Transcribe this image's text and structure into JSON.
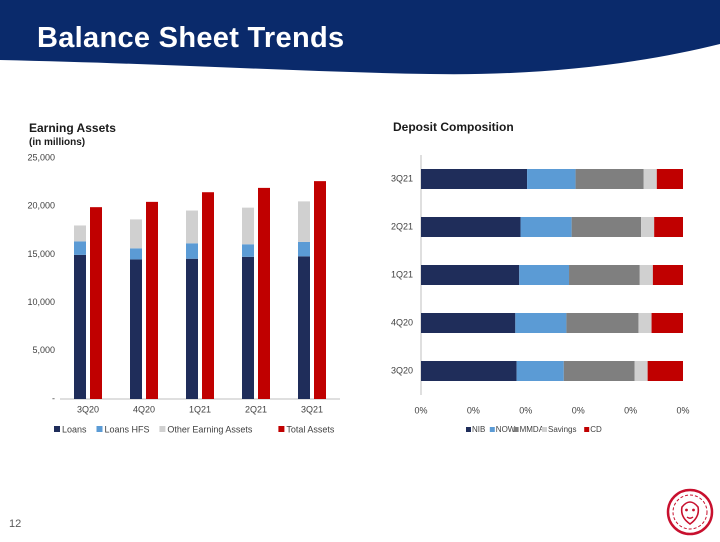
{
  "page": {
    "title": "Balance Sheet Trends",
    "page_number": "12",
    "colors": {
      "header_navy": "#0a2a6b",
      "accent_red": "#c00000"
    },
    "logo_icon": "lion-head-icon"
  },
  "chart_data": [
    {
      "type": "bar",
      "title": "Earning Assets",
      "subtitle": "(in millions)",
      "categories": [
        "3Q20",
        "4Q20",
        "1Q21",
        "2Q21",
        "3Q21"
      ],
      "stacked_series": [
        {
          "name": "Loans",
          "color": "#1f2d5a",
          "values": [
            14950,
            14480,
            14550,
            14750,
            14800
          ]
        },
        {
          "name": "Loans HFS",
          "color": "#5b9bd5",
          "values": [
            1400,
            1150,
            1600,
            1300,
            1500
          ]
        },
        {
          "name": "Other Earning Assets",
          "color": "#d0d0d0",
          "values": [
            1650,
            3000,
            3400,
            3800,
            4200
          ]
        }
      ],
      "side_series": [
        {
          "name": "Total Assets",
          "color": "#c00000",
          "values": [
            19900,
            20450,
            21450,
            21900,
            22600
          ]
        }
      ],
      "ylim": [
        0,
        25000
      ],
      "y_ticks": [
        "-",
        "5,000",
        "10,000",
        "15,000",
        "20,000",
        "25,000"
      ],
      "legend": [
        "Loans",
        "Loans HFS",
        "Other Earning Assets",
        "Total Assets"
      ],
      "legend_position": "bottom",
      "grid": false
    },
    {
      "type": "bar",
      "orientation": "horizontal",
      "stacking": "100%",
      "title": "Deposit Composition",
      "categories": [
        "3Q21",
        "2Q21",
        "1Q21",
        "4Q20",
        "3Q20"
      ],
      "series": [
        {
          "name": "NIB",
          "color": "#1f2d5a",
          "values": [
            40.5,
            38.0,
            37.5,
            36.0,
            36.5
          ]
        },
        {
          "name": "NOW",
          "color": "#5b9bd5",
          "values": [
            18.5,
            19.5,
            19.0,
            19.5,
            18.0
          ]
        },
        {
          "name": "MMDA",
          "color": "#7f7f7f",
          "values": [
            26.0,
            26.5,
            27.0,
            27.5,
            27.0
          ]
        },
        {
          "name": "Savings",
          "color": "#d0d0d0",
          "values": [
            5.0,
            5.0,
            5.0,
            5.0,
            5.0
          ]
        },
        {
          "name": "CD",
          "color": "#c00000",
          "values": [
            10.0,
            11.0,
            11.5,
            12.0,
            13.5
          ]
        }
      ],
      "x_ticks": [
        "0%",
        "0%",
        "0%",
        "0%",
        "0%",
        "0%"
      ],
      "legend": [
        "NIB",
        "NOW",
        "MMDA",
        "Savings",
        "CD"
      ],
      "legend_position": "bottom",
      "grid": false
    }
  ]
}
